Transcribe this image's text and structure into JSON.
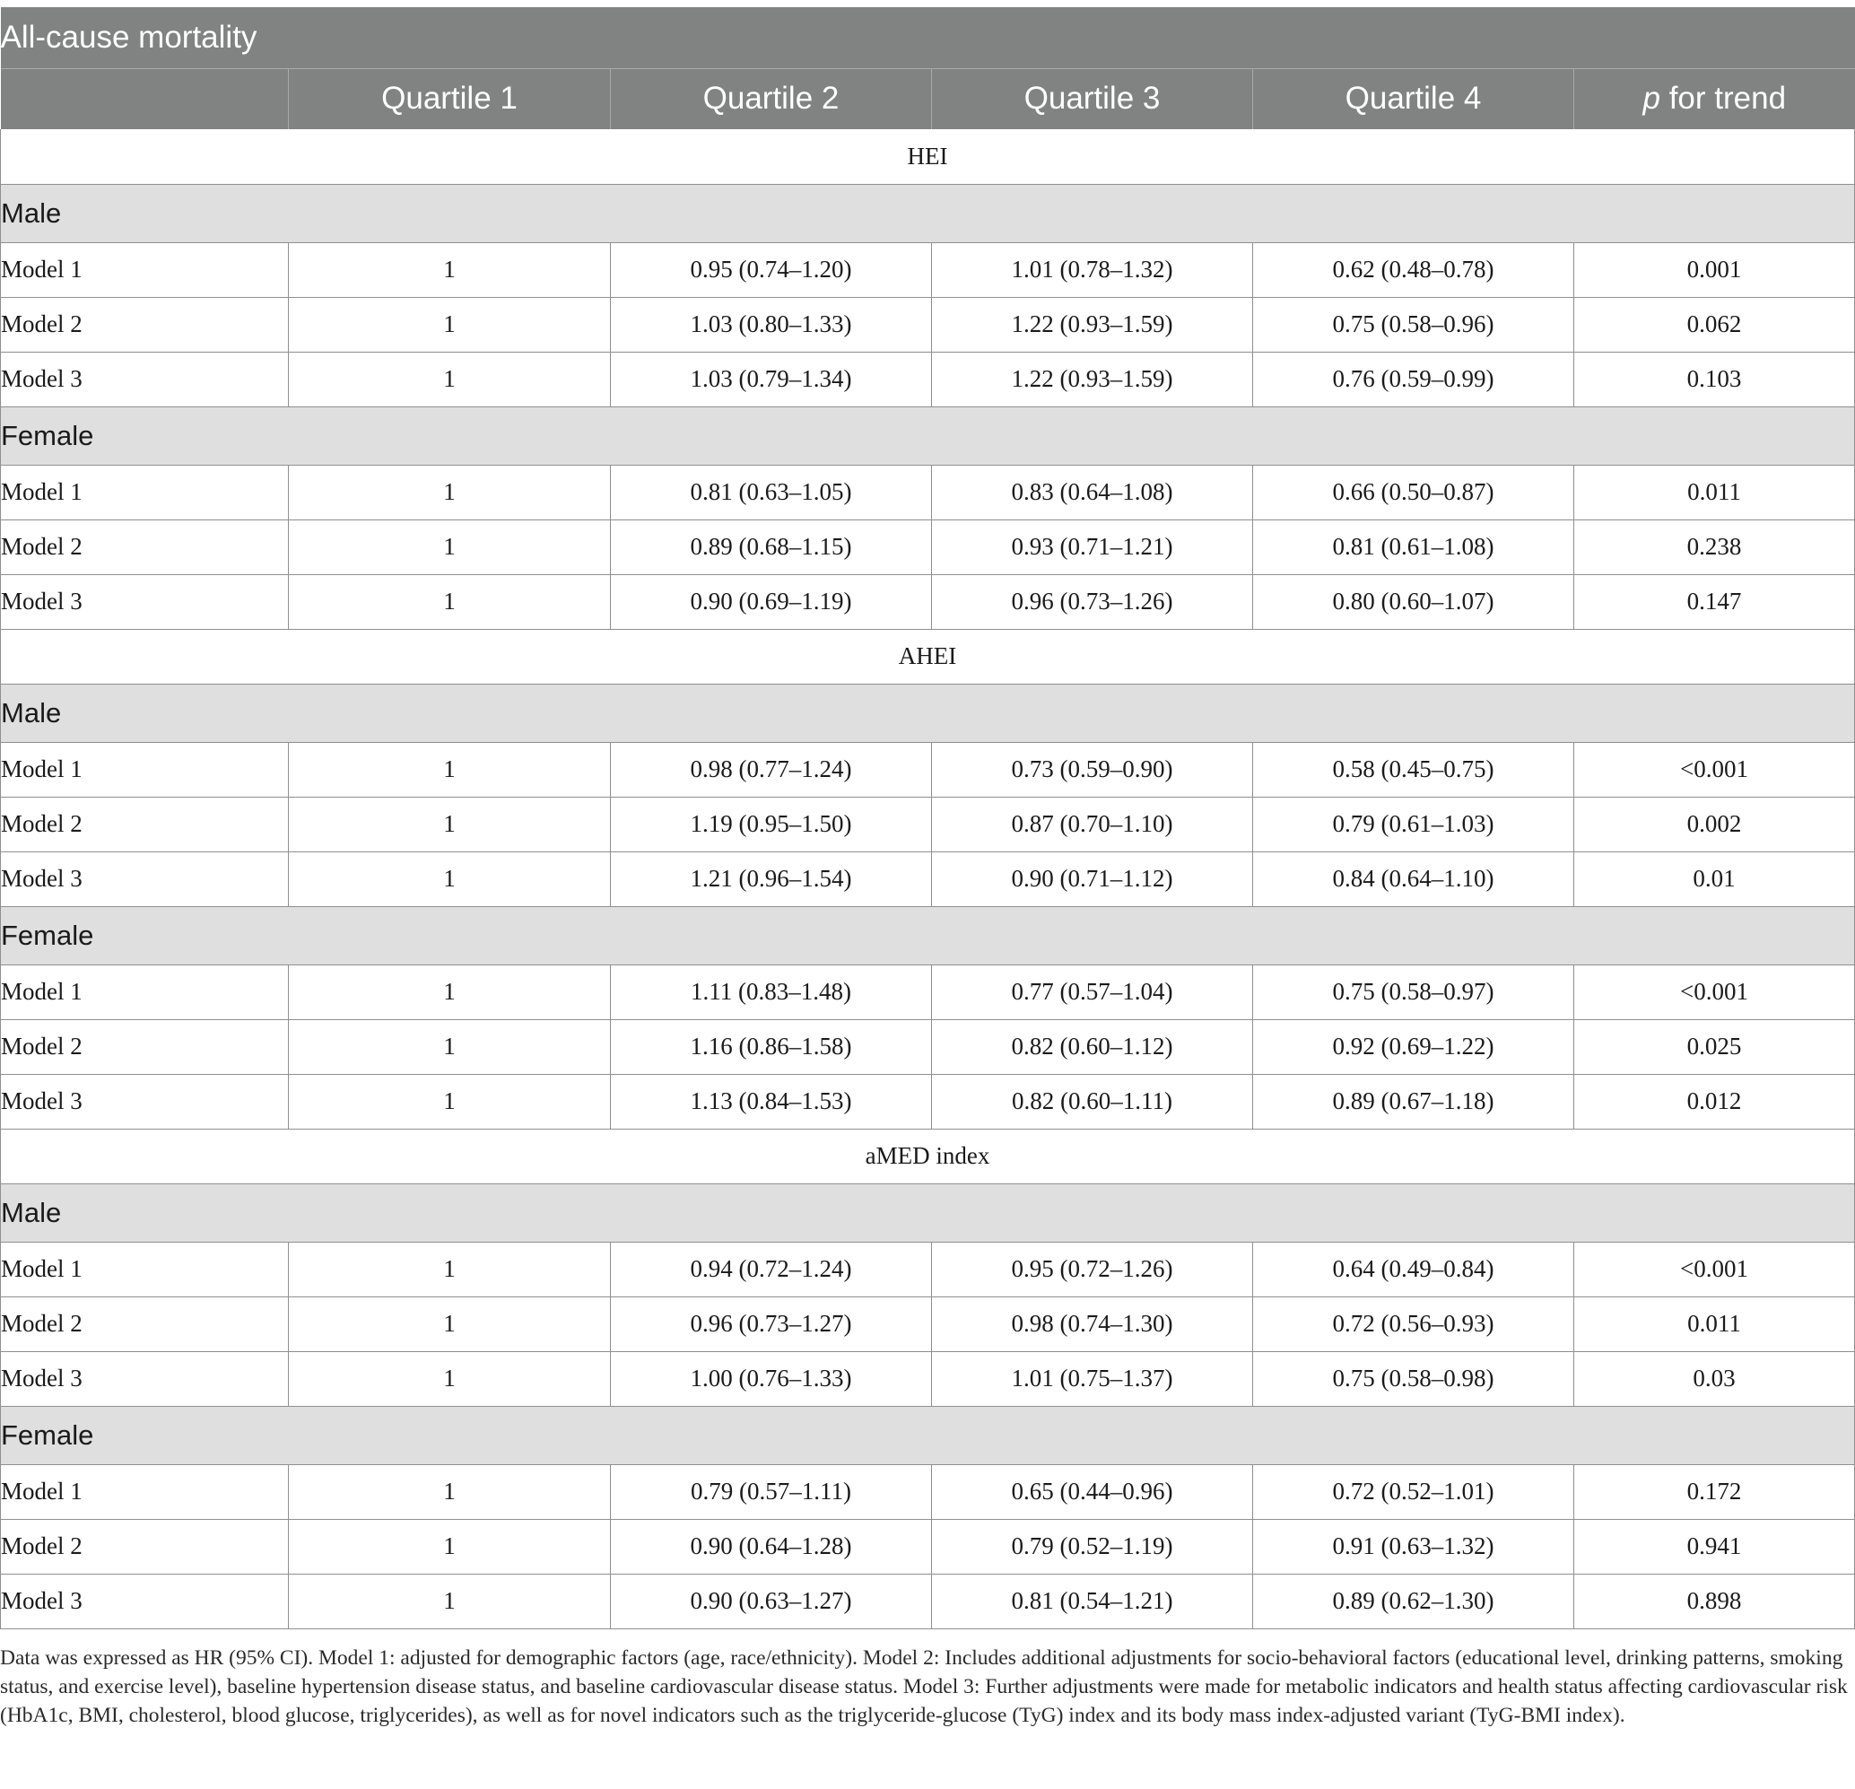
{
  "title": "All-cause mortality",
  "columns": [
    "",
    "Quartile 1",
    "Quartile 2",
    "Quartile 3",
    "Quartile 4"
  ],
  "trend_header": {
    "p": "p",
    "rest": " for trend"
  },
  "sections": [
    {
      "index": "HEI",
      "groups": [
        {
          "sex": "Male",
          "rows": [
            [
              "Model 1",
              "1",
              "0.95 (0.74–1.20)",
              "1.01 (0.78–1.32)",
              "0.62 (0.48–0.78)",
              "0.001"
            ],
            [
              "Model 2",
              "1",
              "1.03 (0.80–1.33)",
              "1.22 (0.93–1.59)",
              "0.75 (0.58–0.96)",
              "0.062"
            ],
            [
              "Model 3",
              "1",
              "1.03 (0.79–1.34)",
              "1.22 (0.93–1.59)",
              "0.76 (0.59–0.99)",
              "0.103"
            ]
          ]
        },
        {
          "sex": "Female",
          "rows": [
            [
              "Model 1",
              "1",
              "0.81 (0.63–1.05)",
              "0.83 (0.64–1.08)",
              "0.66 (0.50–0.87)",
              "0.011"
            ],
            [
              "Model 2",
              "1",
              "0.89 (0.68–1.15)",
              "0.93 (0.71–1.21)",
              "0.81 (0.61–1.08)",
              "0.238"
            ],
            [
              "Model 3",
              "1",
              "0.90 (0.69–1.19)",
              "0.96 (0.73–1.26)",
              "0.80 (0.60–1.07)",
              "0.147"
            ]
          ]
        }
      ]
    },
    {
      "index": "AHEI",
      "groups": [
        {
          "sex": "Male",
          "rows": [
            [
              "Model 1",
              "1",
              "0.98 (0.77–1.24)",
              "0.73 (0.59–0.90)",
              "0.58 (0.45–0.75)",
              "<0.001"
            ],
            [
              "Model 2",
              "1",
              "1.19 (0.95–1.50)",
              "0.87 (0.70–1.10)",
              "0.79 (0.61–1.03)",
              "0.002"
            ],
            [
              "Model 3",
              "1",
              "1.21 (0.96–1.54)",
              "0.90 (0.71–1.12)",
              "0.84 (0.64–1.10)",
              "0.01"
            ]
          ]
        },
        {
          "sex": "Female",
          "rows": [
            [
              "Model 1",
              "1",
              "1.11 (0.83–1.48)",
              "0.77 (0.57–1.04)",
              "0.75 (0.58–0.97)",
              "<0.001"
            ],
            [
              "Model 2",
              "1",
              "1.16 (0.86–1.58)",
              "0.82 (0.60–1.12)",
              "0.92 (0.69–1.22)",
              "0.025"
            ],
            [
              "Model 3",
              "1",
              "1.13 (0.84–1.53)",
              "0.82 (0.60–1.11)",
              "0.89 (0.67–1.18)",
              "0.012"
            ]
          ]
        }
      ]
    },
    {
      "index": "aMED index",
      "groups": [
        {
          "sex": "Male",
          "rows": [
            [
              "Model 1",
              "1",
              "0.94 (0.72–1.24)",
              "0.95 (0.72–1.26)",
              "0.64 (0.49–0.84)",
              "<0.001"
            ],
            [
              "Model 2",
              "1",
              "0.96 (0.73–1.27)",
              "0.98 (0.74–1.30)",
              "0.72 (0.56–0.93)",
              "0.011"
            ],
            [
              "Model 3",
              "1",
              "1.00 (0.76–1.33)",
              "1.01 (0.75–1.37)",
              "0.75 (0.58–0.98)",
              "0.03"
            ]
          ]
        },
        {
          "sex": "Female",
          "rows": [
            [
              "Model 1",
              "1",
              "0.79 (0.57–1.11)",
              "0.65 (0.44–0.96)",
              "0.72 (0.52–1.01)",
              "0.172"
            ],
            [
              "Model 2",
              "1",
              "0.90 (0.64–1.28)",
              "0.79 (0.52–1.19)",
              "0.91 (0.63–1.32)",
              "0.941"
            ],
            [
              "Model 3",
              "1",
              "0.90 (0.63–1.27)",
              "0.81 (0.54–1.21)",
              "0.89 (0.62–1.30)",
              "0.898"
            ]
          ]
        }
      ]
    }
  ],
  "footnote": "Data was expressed as HR (95% CI). Model 1: adjusted for demographic factors (age, race/ethnicity). Model 2: Includes additional adjustments for socio-behavioral factors (educational level, drinking patterns, smoking status, and exercise level), baseline hypertension disease status, and baseline cardiovascular disease status. Model 3: Further adjustments were made for metabolic indicators and health status affecting cardiovascular risk (HbA1c, BMI, cholesterol, blood glucose, triglycerides), as well as for novel indicators such as the triglyceride-glucose (TyG) index and its body mass index-adjusted variant (TyG-BMI index)."
}
